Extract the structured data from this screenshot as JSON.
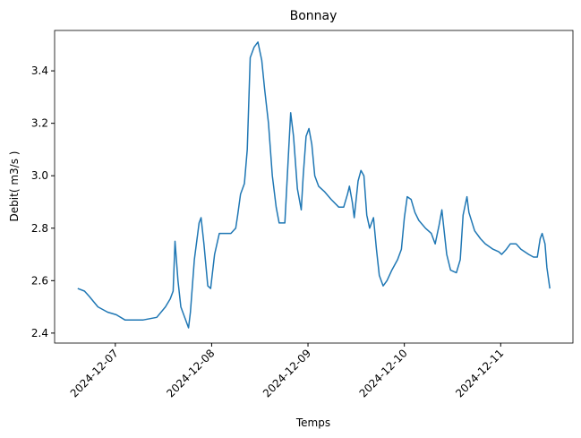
{
  "chart_data": {
    "type": "line",
    "title": "Bonnay",
    "x_label": "Temps",
    "y_label": "Debit( m3/s )",
    "x": [
      6.61,
      6.68,
      6.73,
      6.82,
      6.92,
      7.01,
      7.1,
      7.29,
      7.43,
      7.52,
      7.57,
      7.6,
      7.62,
      7.65,
      7.68,
      7.73,
      7.76,
      7.78,
      7.82,
      7.87,
      7.89,
      7.92,
      7.96,
      7.99,
      8.03,
      8.08,
      8.14,
      8.2,
      8.25,
      8.27,
      8.3,
      8.34,
      8.37,
      8.4,
      8.44,
      8.48,
      8.52,
      8.55,
      8.59,
      8.63,
      8.67,
      8.7,
      8.76,
      8.8,
      8.82,
      8.85,
      8.89,
      8.93,
      8.95,
      8.98,
      9.01,
      9.04,
      9.07,
      9.11,
      9.17,
      9.24,
      9.32,
      9.37,
      9.41,
      9.43,
      9.46,
      9.48,
      9.52,
      9.55,
      9.58,
      9.61,
      9.64,
      9.68,
      9.71,
      9.74,
      9.78,
      9.82,
      9.87,
      9.93,
      9.97,
      10.0,
      10.03,
      10.07,
      10.11,
      10.15,
      10.22,
      10.28,
      10.32,
      10.36,
      10.39,
      10.41,
      10.44,
      10.48,
      10.54,
      10.58,
      10.61,
      10.65,
      10.67,
      10.73,
      10.79,
      10.84,
      10.92,
      10.98,
      11.01,
      11.06,
      11.1,
      11.16,
      11.21,
      11.29,
      11.34,
      11.38,
      11.41,
      11.43,
      11.46,
      11.48,
      11.51
    ],
    "series": [
      {
        "name": "Debit",
        "color": "#1f77b4",
        "values": [
          2.57,
          2.56,
          2.54,
          2.5,
          2.48,
          2.47,
          2.45,
          2.45,
          2.46,
          2.5,
          2.53,
          2.56,
          2.75,
          2.6,
          2.5,
          2.45,
          2.42,
          2.48,
          2.68,
          2.82,
          2.84,
          2.74,
          2.58,
          2.57,
          2.7,
          2.78,
          2.78,
          2.78,
          2.8,
          2.85,
          2.93,
          2.97,
          3.1,
          3.45,
          3.49,
          3.51,
          3.44,
          3.33,
          3.2,
          3.0,
          2.88,
          2.82,
          2.82,
          3.1,
          3.24,
          3.15,
          2.95,
          2.87,
          3.0,
          3.15,
          3.18,
          3.12,
          3.0,
          2.96,
          2.94,
          2.91,
          2.88,
          2.88,
          2.93,
          2.96,
          2.9,
          2.84,
          2.98,
          3.02,
          3.0,
          2.85,
          2.8,
          2.84,
          2.72,
          2.62,
          2.58,
          2.6,
          2.64,
          2.68,
          2.72,
          2.84,
          2.92,
          2.91,
          2.86,
          2.83,
          2.8,
          2.78,
          2.74,
          2.81,
          2.87,
          2.8,
          2.7,
          2.64,
          2.63,
          2.68,
          2.85,
          2.92,
          2.86,
          2.79,
          2.76,
          2.74,
          2.72,
          2.71,
          2.7,
          2.72,
          2.74,
          2.74,
          2.72,
          2.7,
          2.69,
          2.69,
          2.76,
          2.78,
          2.74,
          2.65,
          2.57
        ]
      }
    ],
    "xlim": [
      6.37,
      11.75
    ],
    "xticks": [
      {
        "value": 7,
        "label": "2024-12-07"
      },
      {
        "value": 8,
        "label": "2024-12-08"
      },
      {
        "value": 9,
        "label": "2024-12-09"
      },
      {
        "value": 10,
        "label": "2024-12-10"
      },
      {
        "value": 11,
        "label": "2024-12-11"
      }
    ],
    "ylim": [
      2.362,
      3.554
    ],
    "yticks": [
      2.4,
      2.6,
      2.8,
      {
        "value": 3,
        "label": "3.0"
      },
      3.2,
      3.4
    ],
    "grid": false
  }
}
